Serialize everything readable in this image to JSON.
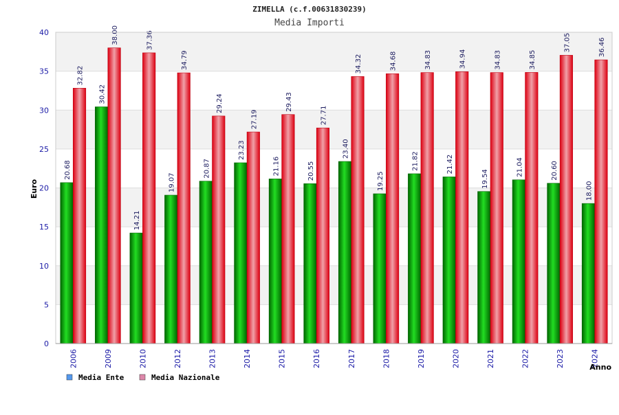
{
  "chart_data": {
    "type": "bar",
    "title": "ZIMELLA (c.f.00631830239)",
    "subtitle": "Media Importi",
    "xlabel": "Anno",
    "ylabel": "Euro",
    "ylim": [
      0,
      40
    ],
    "yticks": [
      0,
      5,
      10,
      15,
      20,
      25,
      30,
      35,
      40
    ],
    "grid": true,
    "legend_position": "bottom-left",
    "categories": [
      "2006",
      "2009",
      "2010",
      "2012",
      "2013",
      "2014",
      "2015",
      "2016",
      "2017",
      "2018",
      "2019",
      "2020",
      "2021",
      "2022",
      "2023",
      "2024"
    ],
    "series": [
      {
        "name": "Media Ente",
        "color": "#00aa00",
        "legend_color": "#5599ee",
        "values": [
          20.68,
          30.42,
          14.21,
          19.07,
          20.87,
          23.23,
          21.16,
          20.55,
          23.4,
          19.25,
          21.82,
          21.42,
          19.54,
          21.04,
          20.6,
          18.0
        ],
        "labels": [
          "20.68",
          "30.42",
          "14.21",
          "19.07",
          "20.87",
          "23.23",
          "21.16",
          "20.55",
          "23.40",
          "19.25",
          "21.82",
          "21.42",
          "19.54",
          "21.04",
          "20.60",
          "18.00"
        ]
      },
      {
        "name": "Media Nazionale",
        "color": "#ee1122",
        "legend_color": "#dd88aa",
        "values": [
          32.82,
          38.0,
          37.36,
          34.79,
          29.24,
          27.19,
          29.43,
          27.71,
          34.32,
          34.68,
          34.83,
          34.94,
          34.83,
          34.85,
          37.05,
          36.46
        ],
        "labels": [
          "32.82",
          "38.00",
          "37.36",
          "34.79",
          "29.24",
          "27.19",
          "29.43",
          "27.71",
          "34.32",
          "34.68",
          "34.83",
          "34.94",
          "34.83",
          "34.85",
          "37.05",
          "36.46"
        ]
      }
    ]
  }
}
